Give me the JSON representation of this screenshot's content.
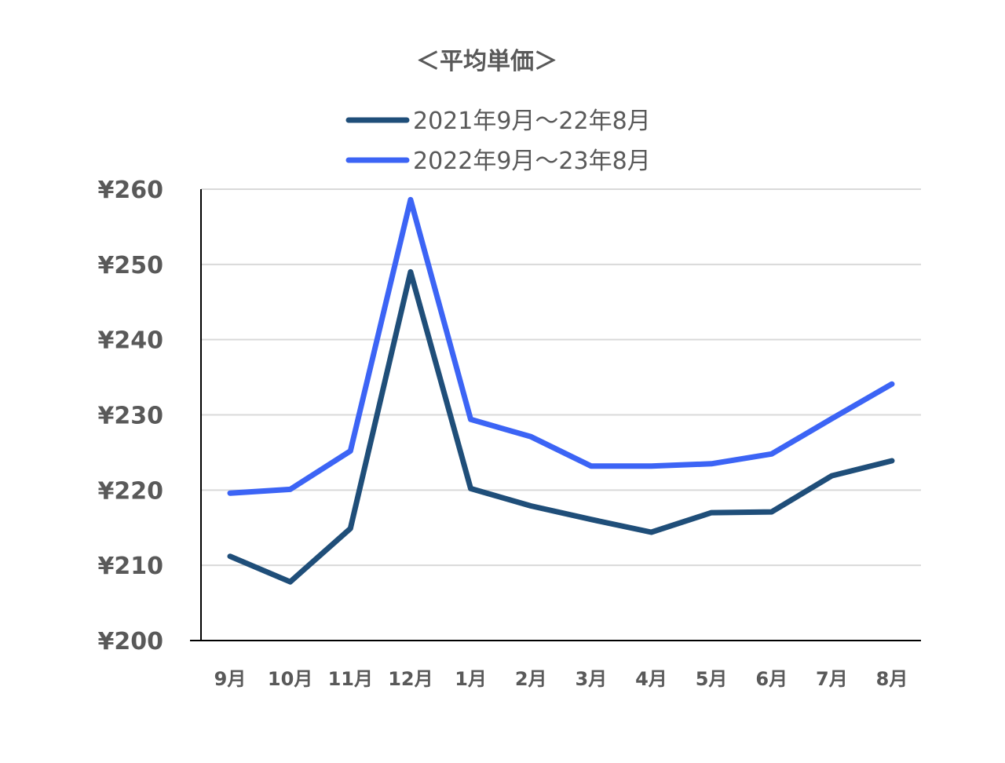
{
  "chart_data": {
    "type": "line",
    "title": "＜平均単価＞",
    "xlabel": "",
    "ylabel": "",
    "categories": [
      "9月",
      "10月",
      "11月",
      "12月",
      "1月",
      "2月",
      "3月",
      "4月",
      "5月",
      "6月",
      "7月",
      "8月"
    ],
    "ylim": [
      200,
      260
    ],
    "yticks": [
      200,
      210,
      220,
      230,
      240,
      250,
      260
    ],
    "ytick_labels": [
      "¥200",
      "¥210",
      "¥220",
      "¥230",
      "¥240",
      "¥250",
      "¥260"
    ],
    "grid": true,
    "legend_position": "top",
    "series": [
      {
        "name": "2021年9月～22年8月",
        "color": "#1f4e79",
        "values": [
          211.2,
          207.8,
          214.9,
          249.0,
          220.2,
          217.9,
          216.1,
          214.4,
          217.0,
          217.1,
          221.9,
          223.9
        ]
      },
      {
        "name": "2022年9月～23年8月",
        "color": "#3c64f5",
        "values": [
          219.6,
          220.1,
          225.2,
          258.6,
          229.4,
          227.1,
          223.2,
          223.2,
          223.5,
          224.8,
          229.5,
          234.1
        ]
      }
    ]
  }
}
